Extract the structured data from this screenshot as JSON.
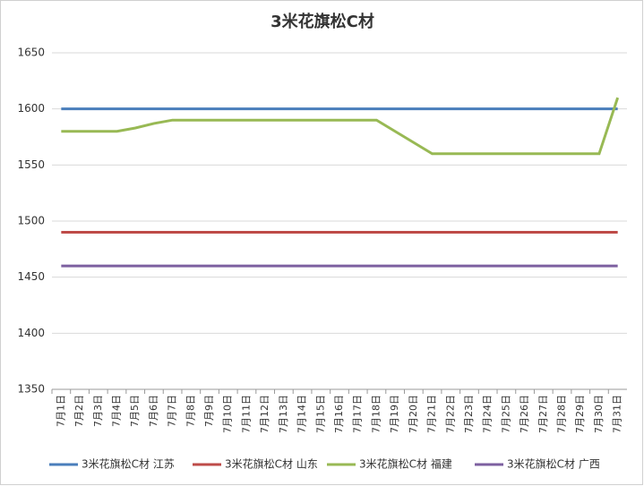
{
  "chart_data": {
    "type": "line",
    "title": "3米花旗松C材",
    "categories": [
      "7月1日",
      "7月2日",
      "7月3日",
      "7月4日",
      "7月5日",
      "7月6日",
      "7月7日",
      "7月8日",
      "7月9日",
      "7月10日",
      "7月11日",
      "7月12日",
      "7月13日",
      "7月14日",
      "7月15日",
      "7月16日",
      "7月17日",
      "7月18日",
      "7月19日",
      "7月20日",
      "7月21日",
      "7月22日",
      "7月23日",
      "7月24日",
      "7月25日",
      "7月26日",
      "7月27日",
      "7月28日",
      "7月29日",
      "7月30日",
      "7月31日"
    ],
    "series": [
      {
        "name": "3米花旗松C材 江苏",
        "color": "#4a7ebb",
        "values": [
          1600,
          1600,
          1600,
          1600,
          1600,
          1600,
          1600,
          1600,
          1600,
          1600,
          1600,
          1600,
          1600,
          1600,
          1600,
          1600,
          1600,
          1600,
          1600,
          1600,
          1600,
          1600,
          1600,
          1600,
          1600,
          1600,
          1600,
          1600,
          1600,
          1600,
          1600
        ]
      },
      {
        "name": "3米花旗松C材 山东",
        "color": "#be4b48",
        "values": [
          1490,
          1490,
          1490,
          1490,
          1490,
          1490,
          1490,
          1490,
          1490,
          1490,
          1490,
          1490,
          1490,
          1490,
          1490,
          1490,
          1490,
          1490,
          1490,
          1490,
          1490,
          1490,
          1490,
          1490,
          1490,
          1490,
          1490,
          1490,
          1490,
          1490,
          1490
        ]
      },
      {
        "name": "3米花旗松C材 福建",
        "color": "#98b954",
        "values": [
          1580,
          1580,
          1580,
          1580,
          1583,
          1587,
          1590,
          1590,
          1590,
          1590,
          1590,
          1590,
          1590,
          1590,
          1590,
          1590,
          1590,
          1590,
          1580,
          1570,
          1560,
          1560,
          1560,
          1560,
          1560,
          1560,
          1560,
          1560,
          1560,
          1560,
          1610
        ]
      },
      {
        "name": "3米花旗松C材 广西",
        "color": "#7d60a0",
        "values": [
          1460,
          1460,
          1460,
          1460,
          1460,
          1460,
          1460,
          1460,
          1460,
          1460,
          1460,
          1460,
          1460,
          1460,
          1460,
          1460,
          1460,
          1460,
          1460,
          1460,
          1460,
          1460,
          1460,
          1460,
          1460,
          1460,
          1460,
          1460,
          1460,
          1460,
          1460
        ]
      }
    ],
    "ylim": [
      1350,
      1650
    ],
    "yticks": [
      1350,
      1400,
      1450,
      1500,
      1550,
      1600,
      1650
    ],
    "grid": true,
    "legend": "bottom"
  }
}
